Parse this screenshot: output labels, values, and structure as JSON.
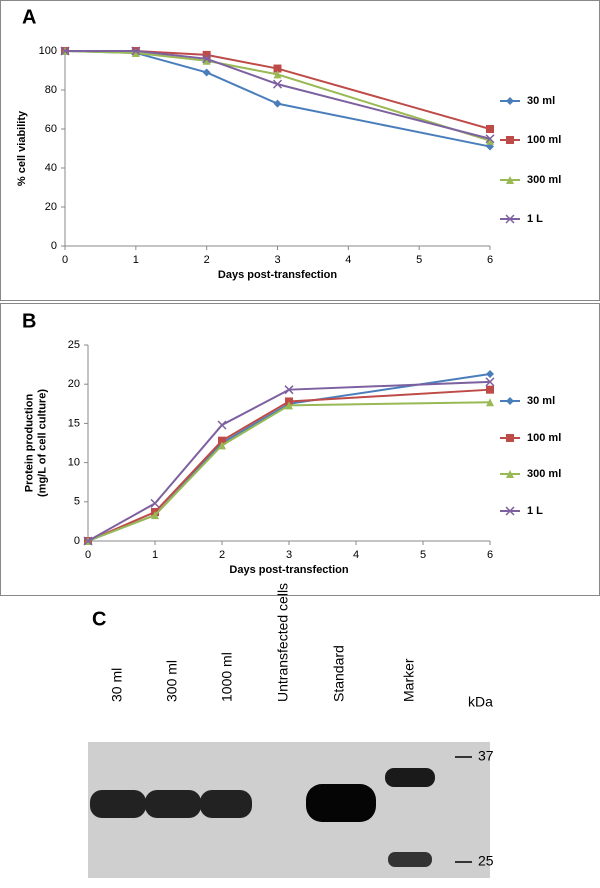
{
  "chart_data": [
    {
      "type": "line",
      "panel": "A",
      "xlabel": "Days post-transfection",
      "ylabel": [
        "% cell viability"
      ],
      "x": [
        0,
        1,
        2,
        3,
        6
      ],
      "xlim": [
        0,
        6
      ],
      "xticks": [
        0,
        1,
        2,
        3,
        4,
        5,
        6
      ],
      "ylim": [
        0,
        100
      ],
      "yticks": [
        0,
        20,
        40,
        60,
        80,
        100
      ],
      "series": [
        {
          "name": "30 ml",
          "color": "#4a7ebb",
          "marker": "diamond",
          "values": [
            100,
            99,
            89,
            73,
            51
          ]
        },
        {
          "name": "100 ml",
          "color": "#be4b48",
          "marker": "square",
          "values": [
            100,
            100,
            98,
            91,
            60
          ]
        },
        {
          "name": "300 ml",
          "color": "#98b954",
          "marker": "triangle",
          "values": [
            100,
            99,
            95,
            88,
            54
          ]
        },
        {
          "name": "1 L",
          "color": "#7d60a0",
          "marker": "x",
          "values": [
            100,
            100,
            96,
            83,
            55
          ]
        }
      ]
    },
    {
      "type": "line",
      "panel": "B",
      "xlabel": "Days post-transfection",
      "ylabel": [
        "Protein production",
        "(mg/L of cell culture)"
      ],
      "x": [
        0,
        1,
        2,
        3,
        6
      ],
      "xlim": [
        0,
        6
      ],
      "xticks": [
        0,
        1,
        2,
        3,
        4,
        5,
        6
      ],
      "ylim": [
        0,
        25
      ],
      "yticks": [
        0,
        5,
        10,
        15,
        20,
        25
      ],
      "series": [
        {
          "name": "30 ml",
          "color": "#4a7ebb",
          "marker": "diamond",
          "values": [
            0,
            3.3,
            12.5,
            17.5,
            21.3
          ]
        },
        {
          "name": "100 ml",
          "color": "#be4b48",
          "marker": "square",
          "values": [
            0,
            3.7,
            12.8,
            17.8,
            19.3
          ]
        },
        {
          "name": "300 ml",
          "color": "#98b954",
          "marker": "triangle",
          "values": [
            0,
            3.3,
            12.2,
            17.3,
            17.7
          ]
        },
        {
          "name": "1 L",
          "color": "#7d60a0",
          "marker": "x",
          "values": [
            0,
            4.8,
            14.8,
            19.3,
            20.3
          ]
        }
      ]
    }
  ],
  "gel": {
    "panel": "C",
    "lanes": [
      "30 ml",
      "300 ml",
      "1000 ml",
      "Untransfected cells",
      "Standard",
      "Marker"
    ],
    "unit": "kDa",
    "markers": [
      "37",
      "25"
    ]
  }
}
